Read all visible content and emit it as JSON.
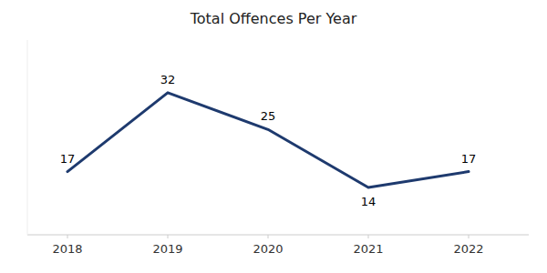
{
  "chart_data": {
    "type": "line",
    "title": "Total Offences Per Year",
    "x": [
      2018,
      2019,
      2020,
      2021,
      2022
    ],
    "values": [
      17,
      32,
      25,
      14,
      17
    ],
    "color": "#1e3a6e",
    "xlim": [
      2017.6,
      2022.6
    ],
    "xticks": [
      2018,
      2019,
      2020,
      2021,
      2022
    ],
    "ylim": [
      5,
      42
    ],
    "data_labels": true,
    "tick_labels": "x",
    "grid": false
  }
}
